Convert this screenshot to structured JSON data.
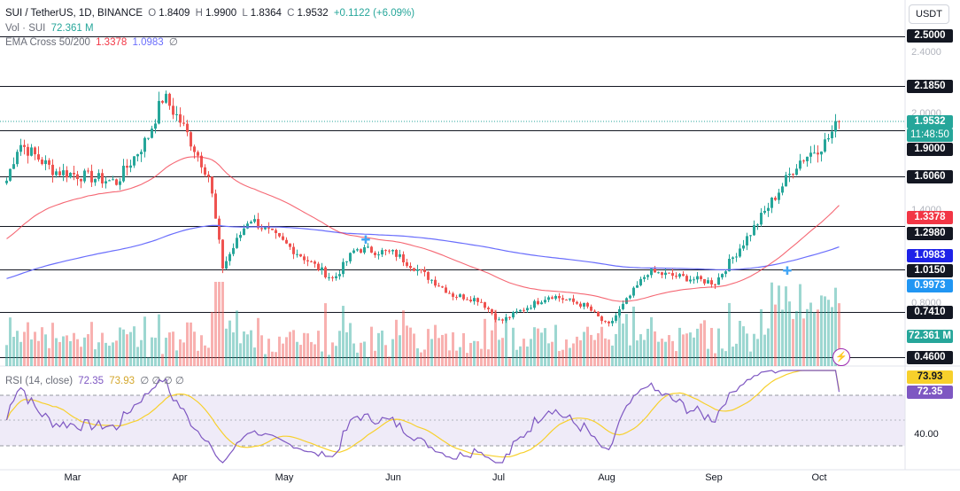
{
  "header": {
    "symbol": "SUI / TetherUS, 1D, BINANCE",
    "open_label": "O",
    "open": "1.8409",
    "high_label": "H",
    "high": "1.9900",
    "low_label": "L",
    "low": "1.8364",
    "close_label": "C",
    "close": "1.9532",
    "change": "+0.1122 (+6.09%)",
    "vol_label": "Vol · SUI",
    "vol": "72.361 M",
    "ema_label": "EMA Cross 50/200",
    "ema50": "1.3378",
    "ema200": "1.0983",
    "ema_extra": "∅"
  },
  "currency_button": "USDT",
  "price_axis": {
    "ticks": [
      "2.4000",
      "2.0000",
      "1.4000",
      "0.8000",
      "40.00"
    ],
    "countdown": "11:48:50"
  },
  "levels": [
    "2.5000",
    "2.1850",
    "1.9000",
    "1.6060",
    "1.2980",
    "1.0150",
    "0.7410",
    "0.4600"
  ],
  "price_labels": {
    "last_price": "1.9532",
    "ema50": "1.3378",
    "ema200": "1.0983",
    "ema200_alt": "0.9973",
    "volume": "72.361 M"
  },
  "rsi": {
    "title": "RSI (14, close)",
    "value": "72.35",
    "ma": "73.93",
    "extras": "∅ ∅ ∅ ∅",
    "level_label": "40.00"
  },
  "x_axis": [
    "Mar",
    "Apr",
    "May",
    "Jun",
    "Jul",
    "Aug",
    "Sep",
    "Oct"
  ],
  "colors": {
    "up": "#26a69a",
    "down": "#ef5350",
    "ema50": "#f23645",
    "ema200": "#6a6efc",
    "rsi": "#7e57c2",
    "rsi_ma": "#f7d02c"
  },
  "chart_data": {
    "type": "candlestick",
    "x": [
      "Mar",
      "Apr",
      "May",
      "Jun",
      "Jul",
      "Aug",
      "Sep",
      "Oct"
    ],
    "series": [
      {
        "name": "SUI / TetherUS, 1D, BINANCE",
        "anchors": [
          {
            "x": "Mar",
            "close": 1.62
          },
          {
            "x": "Apr",
            "close": 1.95
          },
          {
            "x": "May",
            "close": 1.18
          },
          {
            "x": "Jun",
            "close": 1.12
          },
          {
            "x": "Jul",
            "close": 0.68
          },
          {
            "x": "Aug",
            "close": 0.65
          },
          {
            "x": "Sep",
            "close": 0.93
          },
          {
            "x": "Oct",
            "close": 1.9532
          }
        ]
      },
      {
        "name": "EMA 50",
        "last": 1.3378
      },
      {
        "name": "EMA 200",
        "last": 1.0983
      },
      {
        "name": "Vol · SUI",
        "last": 72.361,
        "unit": "M"
      },
      {
        "name": "RSI (14, close)",
        "last": 72.35,
        "ma": 73.93
      }
    ],
    "ylim": [
      0.46,
      2.5
    ]
  }
}
